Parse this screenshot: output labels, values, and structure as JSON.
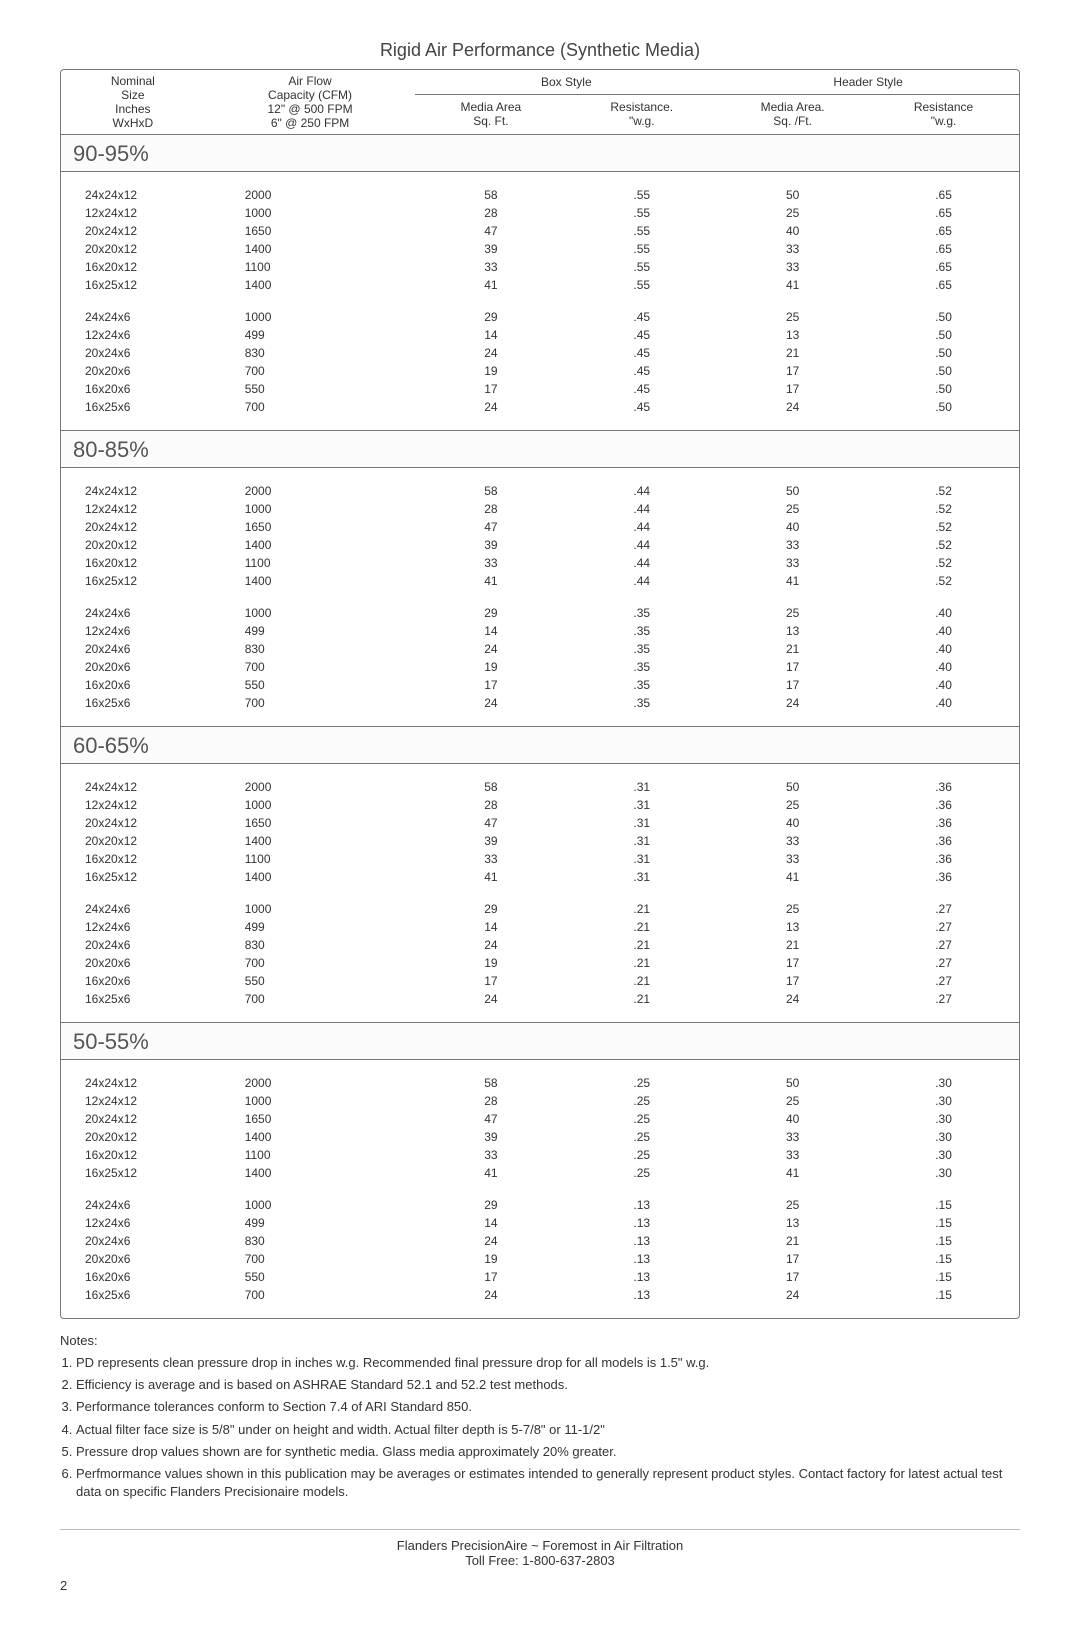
{
  "title": "Rigid Air Performance  (Synthetic Media)",
  "headers": {
    "nominal": {
      "l1": "Nominal",
      "l2": "Size",
      "l3": "Inches",
      "l4": "WxHxD"
    },
    "airflow": {
      "l1": "Air Flow",
      "l2": "Capacity (CFM)",
      "l3": "12\" @ 500 FPM",
      "l4": "6\" @ 250 FPM"
    },
    "box": {
      "grp": "Box Style",
      "c1a": "Media Area",
      "c1b": "Sq. Ft.",
      "c2a": "Resistance.",
      "c2b": "\"w.g."
    },
    "hdr": {
      "grp": "Header Style",
      "c1a": "Media Area.",
      "c1b": "Sq. /Ft.",
      "c2a": "Resistance",
      "c2b": "\"w.g."
    }
  },
  "sections": [
    {
      "label": "90-95%",
      "groups": [
        [
          {
            "size": "24x24x12",
            "air": "2000",
            "bMA": "58",
            "bR": ".55",
            "hMA": "50",
            "hR": ".65"
          },
          {
            "size": "12x24x12",
            "air": "1000",
            "bMA": "28",
            "bR": ".55",
            "hMA": "25",
            "hR": ".65"
          },
          {
            "size": "20x24x12",
            "air": "1650",
            "bMA": "47",
            "bR": ".55",
            "hMA": "40",
            "hR": ".65"
          },
          {
            "size": "20x20x12",
            "air": "1400",
            "bMA": "39",
            "bR": ".55",
            "hMA": "33",
            "hR": ".65"
          },
          {
            "size": "16x20x12",
            "air": "1100",
            "bMA": "33",
            "bR": ".55",
            "hMA": "33",
            "hR": ".65"
          },
          {
            "size": "16x25x12",
            "air": "1400",
            "bMA": "41",
            "bR": ".55",
            "hMA": "41",
            "hR": ".65"
          }
        ],
        [
          {
            "size": "24x24x6",
            "air": "1000",
            "bMA": "29",
            "bR": ".45",
            "hMA": "25",
            "hR": ".50"
          },
          {
            "size": "12x24x6",
            "air": "499",
            "bMA": "14",
            "bR": ".45",
            "hMA": "13",
            "hR": ".50"
          },
          {
            "size": "20x24x6",
            "air": "830",
            "bMA": "24",
            "bR": ".45",
            "hMA": "21",
            "hR": ".50"
          },
          {
            "size": "20x20x6",
            "air": "700",
            "bMA": "19",
            "bR": ".45",
            "hMA": "17",
            "hR": ".50"
          },
          {
            "size": "16x20x6",
            "air": "550",
            "bMA": "17",
            "bR": ".45",
            "hMA": "17",
            "hR": ".50"
          },
          {
            "size": "16x25x6",
            "air": "700",
            "bMA": "24",
            "bR": ".45",
            "hMA": "24",
            "hR": ".50"
          }
        ]
      ]
    },
    {
      "label": "80-85%",
      "groups": [
        [
          {
            "size": "24x24x12",
            "air": "2000",
            "bMA": "58",
            "bR": ".44",
            "hMA": "50",
            "hR": ".52"
          },
          {
            "size": "12x24x12",
            "air": "1000",
            "bMA": "28",
            "bR": ".44",
            "hMA": "25",
            "hR": ".52"
          },
          {
            "size": "20x24x12",
            "air": "1650",
            "bMA": "47",
            "bR": ".44",
            "hMA": "40",
            "hR": ".52"
          },
          {
            "size": "20x20x12",
            "air": "1400",
            "bMA": "39",
            "bR": ".44",
            "hMA": "33",
            "hR": ".52"
          },
          {
            "size": "16x20x12",
            "air": "1100",
            "bMA": "33",
            "bR": ".44",
            "hMA": "33",
            "hR": ".52"
          },
          {
            "size": "16x25x12",
            "air": "1400",
            "bMA": "41",
            "bR": ".44",
            "hMA": "41",
            "hR": ".52"
          }
        ],
        [
          {
            "size": "24x24x6",
            "air": "1000",
            "bMA": "29",
            "bR": ".35",
            "hMA": "25",
            "hR": ".40"
          },
          {
            "size": "12x24x6",
            "air": "499",
            "bMA": "14",
            "bR": ".35",
            "hMA": "13",
            "hR": ".40"
          },
          {
            "size": "20x24x6",
            "air": "830",
            "bMA": "24",
            "bR": ".35",
            "hMA": "21",
            "hR": ".40"
          },
          {
            "size": "20x20x6",
            "air": "700",
            "bMA": "19",
            "bR": ".35",
            "hMA": "17",
            "hR": ".40"
          },
          {
            "size": "16x20x6",
            "air": "550",
            "bMA": "17",
            "bR": ".35",
            "hMA": "17",
            "hR": ".40"
          },
          {
            "size": "16x25x6",
            "air": "700",
            "bMA": "24",
            "bR": ".35",
            "hMA": "24",
            "hR": ".40"
          }
        ]
      ]
    },
    {
      "label": "60-65%",
      "groups": [
        [
          {
            "size": "24x24x12",
            "air": "2000",
            "bMA": "58",
            "bR": ".31",
            "hMA": "50",
            "hR": ".36"
          },
          {
            "size": "12x24x12",
            "air": "1000",
            "bMA": "28",
            "bR": ".31",
            "hMA": "25",
            "hR": ".36"
          },
          {
            "size": "20x24x12",
            "air": "1650",
            "bMA": "47",
            "bR": ".31",
            "hMA": "40",
            "hR": ".36"
          },
          {
            "size": "20x20x12",
            "air": "1400",
            "bMA": "39",
            "bR": ".31",
            "hMA": "33",
            "hR": ".36"
          },
          {
            "size": "16x20x12",
            "air": "1100",
            "bMA": "33",
            "bR": ".31",
            "hMA": "33",
            "hR": ".36"
          },
          {
            "size": "16x25x12",
            "air": "1400",
            "bMA": "41",
            "bR": ".31",
            "hMA": "41",
            "hR": ".36"
          }
        ],
        [
          {
            "size": "24x24x6",
            "air": "1000",
            "bMA": "29",
            "bR": ".21",
            "hMA": "25",
            "hR": ".27"
          },
          {
            "size": "12x24x6",
            "air": "499",
            "bMA": "14",
            "bR": ".21",
            "hMA": "13",
            "hR": ".27"
          },
          {
            "size": "20x24x6",
            "air": "830",
            "bMA": "24",
            "bR": ".21",
            "hMA": "21",
            "hR": ".27"
          },
          {
            "size": "20x20x6",
            "air": "700",
            "bMA": "19",
            "bR": ".21",
            "hMA": "17",
            "hR": ".27"
          },
          {
            "size": "16x20x6",
            "air": "550",
            "bMA": "17",
            "bR": ".21",
            "hMA": "17",
            "hR": ".27"
          },
          {
            "size": "16x25x6",
            "air": "700",
            "bMA": "24",
            "bR": ".21",
            "hMA": "24",
            "hR": ".27"
          }
        ]
      ]
    },
    {
      "label": "50-55%",
      "groups": [
        [
          {
            "size": "24x24x12",
            "air": "2000",
            "bMA": "58",
            "bR": ".25",
            "hMA": "50",
            "hR": ".30"
          },
          {
            "size": "12x24x12",
            "air": "1000",
            "bMA": "28",
            "bR": ".25",
            "hMA": "25",
            "hR": ".30"
          },
          {
            "size": "20x24x12",
            "air": "1650",
            "bMA": "47",
            "bR": ".25",
            "hMA": "40",
            "hR": ".30"
          },
          {
            "size": "20x20x12",
            "air": "1400",
            "bMA": "39",
            "bR": ".25",
            "hMA": "33",
            "hR": ".30"
          },
          {
            "size": "16x20x12",
            "air": "1100",
            "bMA": "33",
            "bR": ".25",
            "hMA": "33",
            "hR": ".30"
          },
          {
            "size": "16x25x12",
            "air": "1400",
            "bMA": "41",
            "bR": ".25",
            "hMA": "41",
            "hR": ".30"
          }
        ],
        [
          {
            "size": "24x24x6",
            "air": "1000",
            "bMA": "29",
            "bR": ".13",
            "hMA": "25",
            "hR": ".15"
          },
          {
            "size": "12x24x6",
            "air": "499",
            "bMA": "14",
            "bR": ".13",
            "hMA": "13",
            "hR": ".15"
          },
          {
            "size": "20x24x6",
            "air": "830",
            "bMA": "24",
            "bR": ".13",
            "hMA": "21",
            "hR": ".15"
          },
          {
            "size": "20x20x6",
            "air": "700",
            "bMA": "19",
            "bR": ".13",
            "hMA": "17",
            "hR": ".15"
          },
          {
            "size": "16x20x6",
            "air": "550",
            "bMA": "17",
            "bR": ".13",
            "hMA": "17",
            "hR": ".15"
          },
          {
            "size": "16x25x6",
            "air": "700",
            "bMA": "24",
            "bR": ".13",
            "hMA": "24",
            "hR": ".15"
          }
        ]
      ]
    }
  ],
  "notes_label": "Notes:",
  "notes": [
    "PD represents clean pressure drop in inches w.g. Recommended final pressure drop for all models is 1.5\" w.g.",
    "Efficiency is average and is based on ASHRAE Standard 52.1 and 52.2 test methods.",
    "Performance tolerances conform to Section 7.4 of ARI Standard 850.",
    "Actual filter face size is 5/8\" under on height and width. Actual filter depth is 5-7/8\" or 11-1/2\"",
    "Pressure drop values shown are for synthetic media. Glass media approximately 20% greater.",
    "Perfmormance values shown in this publication may be averages or estimates intended to generally represent product styles. Contact factory for latest actual test data on specific Flanders Precisionaire models."
  ],
  "footer": {
    "l1": "Flanders PrecisionAire ~ Foremost in Air Filtration",
    "l2": "Toll Free: 1-800-637-2803"
  },
  "page_number": "2"
}
